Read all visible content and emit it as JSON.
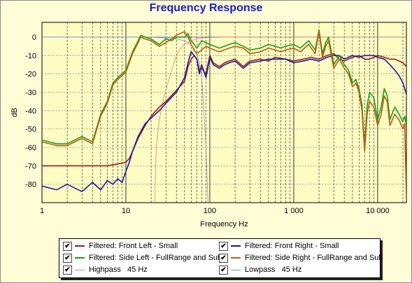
{
  "chart_data": {
    "type": "line",
    "title": "Frequency Response",
    "xlabel": "Frequency Hz",
    "ylabel": "dB",
    "xscale": "log",
    "xlim": [
      1,
      22000
    ],
    "ylim": [
      -90,
      8
    ],
    "x_ticks": [
      {
        "value": 1,
        "label": "1"
      },
      {
        "value": 10,
        "label": "10"
      },
      {
        "value": 100,
        "label": "100"
      },
      {
        "value": 1000,
        "label": "1 000"
      },
      {
        "value": 10000,
        "label": "10 000"
      }
    ],
    "y_ticks": [
      0,
      -10,
      -20,
      -30,
      -40,
      -50,
      -60,
      -70,
      -80
    ],
    "grid": true,
    "legend_position": "bottom",
    "series": [
      {
        "name": "Filtered: Front Left - Small",
        "color": "#a01818",
        "width": 1.6,
        "x": [
          1,
          2,
          4,
          6,
          8,
          10,
          11,
          12,
          14,
          17,
          20,
          25,
          30,
          40,
          50,
          55,
          60,
          65,
          70,
          75,
          80,
          90,
          100,
          110,
          130,
          150,
          170,
          200,
          250,
          300,
          400,
          500,
          600,
          800,
          1000,
          1300,
          1600,
          2000,
          2500,
          3000,
          3500,
          4000,
          5000,
          6000,
          7000,
          8000,
          9000,
          10000,
          12000,
          14000,
          16000,
          18000,
          20000,
          22000
        ],
        "y": [
          -70,
          -70,
          -70,
          -70,
          -69,
          -68,
          -66,
          -62,
          -55,
          -48,
          -43,
          -38,
          -35,
          -29,
          -24,
          -16,
          -12,
          -10,
          -12,
          -18,
          -17,
          -20,
          -10,
          -14,
          -16,
          -14,
          -13,
          -12,
          -16,
          -13,
          -12,
          -13,
          -11,
          -12,
          -13,
          -12,
          -11,
          -12,
          -10,
          -9,
          -12,
          -13,
          -11,
          -10,
          -12,
          -12,
          -11,
          -10,
          -11,
          -12,
          -12,
          -13,
          -14,
          -16
        ]
      },
      {
        "name": "Filtered: Front Right - Small",
        "color": "#1a1aa0",
        "width": 1.6,
        "x": [
          1,
          1.5,
          2,
          3,
          4,
          5,
          6,
          7,
          8,
          9,
          10,
          11,
          12,
          14,
          17,
          20,
          25,
          30,
          40,
          50,
          55,
          60,
          65,
          70,
          75,
          80,
          90,
          100,
          110,
          130,
          150,
          170,
          200,
          250,
          300,
          400,
          500,
          600,
          800,
          1000,
          1300,
          1600,
          2000,
          2500,
          3000,
          3500,
          4000,
          5000,
          6000,
          7000,
          8000,
          9000,
          10000,
          12000,
          14000,
          16000,
          18000,
          20000,
          22000
        ],
        "y": [
          -81,
          -83,
          -80,
          -84,
          -79,
          -83,
          -78,
          -80,
          -77,
          -79,
          -73,
          -68,
          -62,
          -54,
          -47,
          -44,
          -40,
          -36,
          -30,
          -22,
          -14,
          -8,
          -10,
          -12,
          -20,
          -15,
          -22,
          -11,
          -15,
          -17,
          -15,
          -14,
          -13,
          -17,
          -14,
          -13,
          -12,
          -12,
          -12,
          -14,
          -13,
          -12,
          -13,
          -11,
          -10,
          -10,
          -12,
          -10,
          -11,
          -10,
          -10,
          -10,
          -11,
          -12,
          -15,
          -18,
          -21,
          -25,
          -31
        ]
      },
      {
        "name": "Filtered: Side Left - FullRange and Sub",
        "color": "#18a018",
        "width": 1.6,
        "x": [
          1,
          1.5,
          2,
          3,
          4,
          5,
          6,
          7,
          8,
          9,
          10,
          12,
          14,
          15,
          17,
          20,
          25,
          30,
          35,
          40,
          50,
          55,
          60,
          65,
          70,
          80,
          90,
          100,
          130,
          170,
          200,
          250,
          300,
          400,
          500,
          600,
          700,
          800,
          1000,
          1200,
          1500,
          1800,
          2000,
          2200,
          2400,
          2600,
          3000,
          3500,
          4000,
          4500,
          5000,
          5500,
          6000,
          6500,
          7000,
          7500,
          8000,
          9000,
          10000,
          11000,
          12000,
          13000,
          14000,
          16000,
          18000,
          20000,
          21000,
          22000
        ],
        "y": [
          -56,
          -58,
          -58,
          -54,
          -57,
          -42,
          -35,
          -25,
          -22,
          -20,
          -18,
          -8,
          -2,
          1,
          0,
          -1,
          -4,
          -1,
          -2,
          0,
          0,
          2,
          -2,
          -4,
          -6,
          -2,
          -3,
          -4,
          -6,
          -4,
          -3,
          -5,
          -7,
          -6,
          -4,
          -5,
          -6,
          -5,
          -4,
          -6,
          -2,
          -7,
          4,
          -9,
          -3,
          0,
          -15,
          -10,
          -15,
          -18,
          -25,
          -23,
          -28,
          -37,
          -60,
          -37,
          -30,
          -33,
          -45,
          -38,
          -28,
          -32,
          -45,
          -38,
          -42,
          -46,
          -43,
          -48
        ]
      },
      {
        "name": "Filtered: Side Right - FullRange and Sub",
        "color": "#c05810",
        "width": 1.6,
        "x": [
          1,
          1.5,
          2,
          3,
          4,
          5,
          6,
          7,
          8,
          9,
          10,
          12,
          14,
          15,
          17,
          20,
          25,
          30,
          35,
          40,
          50,
          55,
          60,
          65,
          70,
          80,
          90,
          100,
          130,
          170,
          200,
          250,
          300,
          400,
          500,
          600,
          700,
          800,
          1000,
          1200,
          1500,
          1800,
          2000,
          2200,
          2400,
          2600,
          3000,
          3500,
          4000,
          4500,
          5000,
          5500,
          6000,
          6500,
          7000,
          7500,
          8000,
          9000,
          10000,
          11000,
          12000,
          13000,
          14000,
          16000,
          18000,
          20000,
          21000,
          22000
        ],
        "y": [
          -57,
          -59,
          -59,
          -55,
          -58,
          -43,
          -36,
          -26,
          -23,
          -21,
          -19,
          -9,
          -3,
          0,
          -1,
          -2,
          -5,
          -3,
          -1,
          1,
          3,
          0,
          -4,
          -7,
          -9,
          -7,
          -5,
          -6,
          -8,
          -6,
          -5,
          -6,
          -9,
          -8,
          -6,
          -7,
          -8,
          -7,
          -6,
          -8,
          -4,
          -9,
          3,
          -11,
          -5,
          -2,
          -17,
          -12,
          -17,
          -20,
          -27,
          -25,
          -30,
          -40,
          -62,
          -42,
          -35,
          -38,
          -48,
          -42,
          -32,
          -35,
          -48,
          -42,
          -45,
          -50,
          -47,
          -88
        ]
      },
      {
        "name": "Highpass   45 Hz",
        "color": "#e08080",
        "width": 0.8,
        "x": [
          22,
          23,
          25,
          28,
          32,
          36,
          40,
          45,
          50,
          60,
          70,
          80,
          100,
          150,
          300,
          1000,
          22000
        ],
        "y": [
          -90,
          -60,
          -45,
          -34,
          -24,
          -16,
          -10,
          -6,
          -4,
          -2,
          -1,
          -0.5,
          -0.2,
          0,
          0,
          0,
          0
        ]
      },
      {
        "name": "Lowpass   45 Hz",
        "color": "#8090e0",
        "width": 0.8,
        "x": [
          1,
          10,
          20,
          30,
          40,
          50,
          60,
          70,
          75,
          80,
          85,
          90,
          95
        ],
        "y": [
          0,
          0,
          0,
          -0.5,
          -1,
          -2,
          -4,
          -9,
          -14,
          -22,
          -40,
          -60,
          -90
        ]
      }
    ]
  },
  "legend": {
    "check_glyph": "✔"
  }
}
